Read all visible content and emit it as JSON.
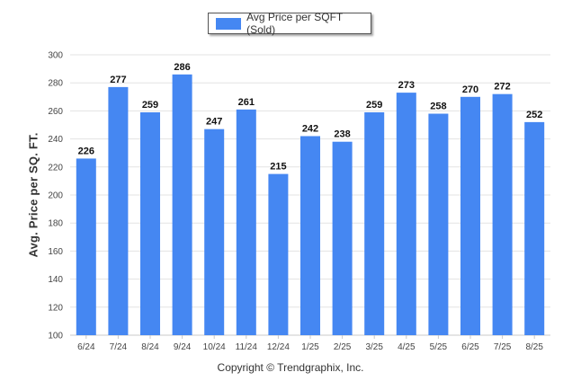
{
  "chart_data": {
    "type": "bar",
    "legend": "Avg Price per SQFT (Sold)",
    "legend_position": "top-center",
    "ylabel": "Avg. Price per SQ. FT.",
    "xlabel": "",
    "ylim": [
      100,
      300
    ],
    "yticks": [
      100,
      120,
      140,
      160,
      180,
      200,
      220,
      240,
      260,
      280,
      300
    ],
    "grid": true,
    "categories": [
      "6/24",
      "7/24",
      "8/24",
      "9/24",
      "10/24",
      "11/24",
      "12/24",
      "1/25",
      "2/25",
      "3/25",
      "4/25",
      "5/25",
      "6/25",
      "7/25",
      "8/25"
    ],
    "values": [
      226,
      277,
      259,
      286,
      247,
      261,
      215,
      242,
      238,
      259,
      273,
      258,
      270,
      272,
      252
    ],
    "bar_color": "#4587f2"
  },
  "footer": "Copyright © Trendgraphix, Inc."
}
